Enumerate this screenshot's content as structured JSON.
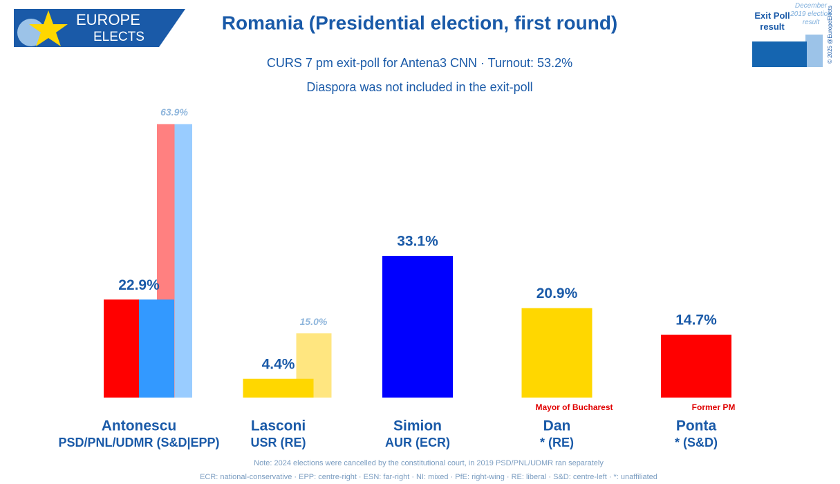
{
  "logo": {
    "top": "EUROPE",
    "bottom": "ELECTS"
  },
  "copyright": "© 2025 @EuropeElects",
  "chart_data": {
    "type": "bar",
    "title": "Romania (Presidential election, first round)",
    "subtitle": [
      "CURS 7 pm exit-poll for Antena3 CNN · Turnout: 53.2%",
      "Diaspora was not included in the exit-poll"
    ],
    "categories": [
      "Antonescu",
      "Lasconi",
      "Simion",
      "Dan",
      "Ponta"
    ],
    "parties": [
      "PSD/PNL/UDMR (S&D|EPP)",
      "USR (RE)",
      "AUR (ECR)",
      "* (RE)",
      "* (S&D)"
    ],
    "annotations": [
      null,
      null,
      null,
      "Mayor of Bucharest",
      "Former PM"
    ],
    "series": [
      {
        "name": "Exit Poll result",
        "color": "#1565b0",
        "values": [
          22.9,
          4.4,
          33.1,
          20.9,
          14.7
        ],
        "value_labels": [
          "22.9%",
          "4.4%",
          "33.1%",
          "20.9%",
          "14.7%"
        ],
        "colors": [
          [
            "#ff0000",
            "#3399ff"
          ],
          "#ffd700",
          "#0000ff",
          "#ffd700",
          "#ff0000"
        ]
      },
      {
        "name": "December 2019 election result",
        "color": "#9cc3e8",
        "values": [
          63.9,
          15.0,
          null,
          null,
          null
        ],
        "value_labels": [
          "63.9%",
          "15.0%",
          null,
          null,
          null
        ],
        "colors": [
          [
            "#ff8080",
            "#99ccff"
          ],
          "#ffe680",
          null,
          null,
          null
        ]
      }
    ],
    "notes": [
      "Note: 2024 elections were cancelled by the constitutional court, in 2019 PSD/PNL/UDMR ran separately",
      "ECR: national-conservative · EPP: centre-right · ESN: far-right · NI: mixed · PfE: right-wing · RE: liberal · S&D: centre-left · *: unaffiliated"
    ]
  }
}
